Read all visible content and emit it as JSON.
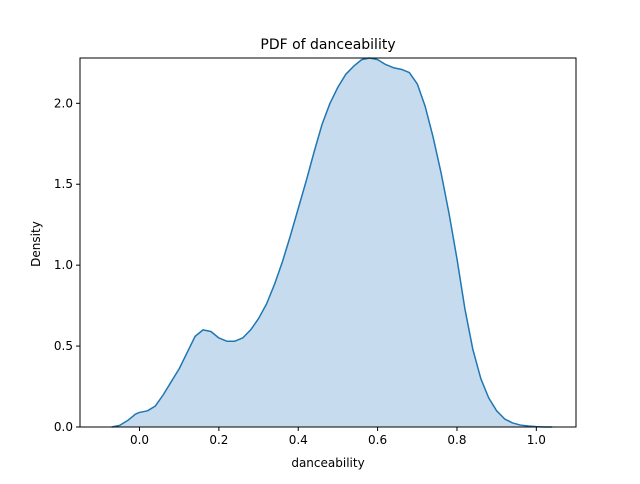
{
  "chart_data": {
    "type": "area",
    "title": "PDF of danceability",
    "xlabel": "danceability",
    "ylabel": "Density",
    "xlim": [
      -0.15,
      1.1
    ],
    "ylim": [
      0,
      2.28
    ],
    "xticks": [
      0.0,
      0.2,
      0.4,
      0.6,
      0.8,
      1.0
    ],
    "xtick_labels": [
      "0.0",
      "0.2",
      "0.4",
      "0.6",
      "0.8",
      "1.0"
    ],
    "yticks": [
      0.0,
      0.5,
      1.0,
      1.5,
      2.0
    ],
    "ytick_labels": [
      "0.0",
      "0.5",
      "1.0",
      "1.5",
      "2.0"
    ],
    "grid": false,
    "series": [
      {
        "color": "#1f77b4",
        "fill_color": "#c6dbed",
        "x": [
          -0.07,
          -0.05,
          -0.03,
          -0.01,
          0.0,
          0.02,
          0.04,
          0.06,
          0.08,
          0.1,
          0.12,
          0.14,
          0.16,
          0.18,
          0.2,
          0.22,
          0.24,
          0.26,
          0.28,
          0.3,
          0.32,
          0.34,
          0.36,
          0.38,
          0.4,
          0.42,
          0.44,
          0.46,
          0.48,
          0.5,
          0.52,
          0.54,
          0.56,
          0.58,
          0.6,
          0.62,
          0.64,
          0.66,
          0.68,
          0.7,
          0.72,
          0.74,
          0.76,
          0.78,
          0.8,
          0.82,
          0.84,
          0.86,
          0.88,
          0.9,
          0.92,
          0.94,
          0.96,
          0.98,
          1.0,
          1.02,
          1.04
        ],
        "y": [
          0.0,
          0.01,
          0.04,
          0.08,
          0.09,
          0.1,
          0.13,
          0.2,
          0.28,
          0.36,
          0.46,
          0.56,
          0.6,
          0.59,
          0.55,
          0.53,
          0.53,
          0.55,
          0.6,
          0.67,
          0.76,
          0.88,
          1.02,
          1.18,
          1.35,
          1.52,
          1.7,
          1.87,
          2.0,
          2.1,
          2.18,
          2.23,
          2.27,
          2.28,
          2.27,
          2.24,
          2.22,
          2.21,
          2.19,
          2.12,
          1.98,
          1.79,
          1.57,
          1.32,
          1.04,
          0.73,
          0.48,
          0.3,
          0.18,
          0.1,
          0.05,
          0.025,
          0.012,
          0.006,
          0.002,
          0.0,
          0.0
        ]
      }
    ]
  }
}
